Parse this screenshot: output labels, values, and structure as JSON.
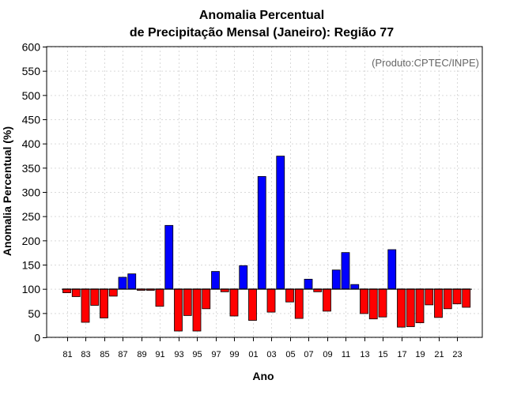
{
  "chart_data": {
    "type": "bar",
    "title_line1": "Anomalia Percentual",
    "title_line2": "de Precipitação Mensal (Janeiro): Região 77",
    "xlabel": "Ano",
    "ylabel": "Anomalia Percentual (%)",
    "credit": "(Produto:CPTEC/INPE)",
    "baseline": 100,
    "ylim": [
      0,
      600
    ],
    "yticks": [
      0,
      50,
      100,
      150,
      200,
      250,
      300,
      350,
      400,
      450,
      500,
      550,
      600
    ],
    "grid": true,
    "categories": [
      "81",
      "82",
      "83",
      "84",
      "85",
      "86",
      "87",
      "88",
      "89",
      "90",
      "91",
      "92",
      "93",
      "94",
      "95",
      "96",
      "97",
      "98",
      "99",
      "00",
      "01",
      "02",
      "03",
      "04",
      "05",
      "06",
      "07",
      "08",
      "09",
      "10",
      "11",
      "12",
      "13",
      "14",
      "15",
      "16",
      "17",
      "18",
      "19",
      "20",
      "21",
      "22",
      "23",
      "24"
    ],
    "xtick_labels": [
      "81",
      "83",
      "85",
      "87",
      "89",
      "91",
      "93",
      "95",
      "97",
      "99",
      "01",
      "03",
      "05",
      "07",
      "09",
      "11",
      "13",
      "15",
      "17",
      "19",
      "21",
      "23"
    ],
    "values": [
      92,
      84,
      31,
      66,
      40,
      85,
      124,
      131,
      97,
      97,
      64,
      231,
      13,
      45,
      13,
      59,
      136,
      94,
      44,
      148,
      35,
      332,
      52,
      374,
      73,
      39,
      120,
      94,
      54,
      139,
      175,
      109,
      49,
      38,
      42,
      181,
      21,
      22,
      30,
      67,
      41,
      59,
      69,
      62
    ],
    "colors": {
      "above": "#0000ff",
      "below": "#ff0000",
      "outline": "#000000"
    }
  }
}
